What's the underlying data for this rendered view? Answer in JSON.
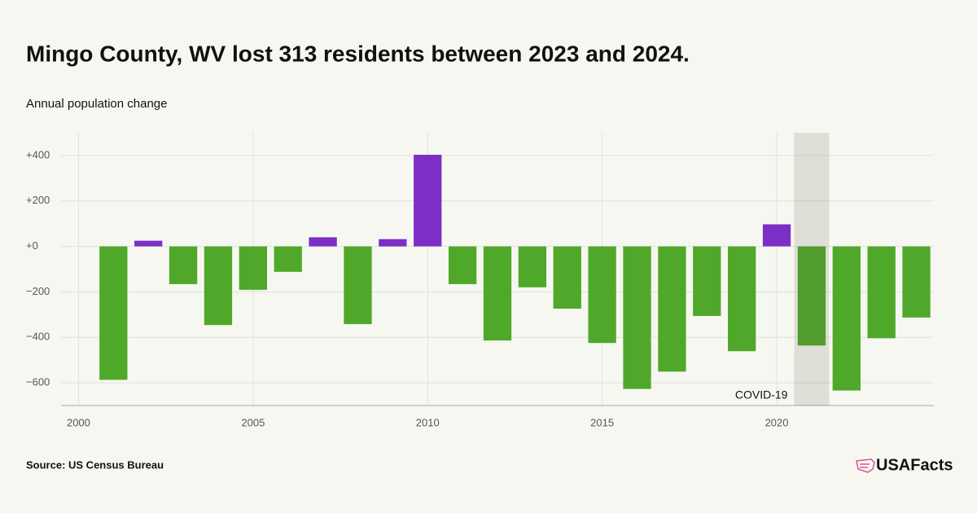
{
  "chart_data": {
    "type": "bar",
    "title": "Mingo County, WV lost 313 residents between 2023 and 2024.",
    "subtitle": "Annual population change",
    "source": "Source: US Census Bureau",
    "brand": "USAFacts",
    "x": [
      2001,
      2002,
      2003,
      2004,
      2005,
      2006,
      2007,
      2008,
      2009,
      2010,
      2011,
      2012,
      2013,
      2014,
      2015,
      2016,
      2017,
      2018,
      2019,
      2020,
      2021,
      2022,
      2023,
      2024
    ],
    "values": [
      -587,
      25,
      -166,
      -346,
      -191,
      -112,
      40,
      -342,
      32,
      403,
      -166,
      -414,
      -180,
      -274,
      -425,
      -627,
      -551,
      -306,
      -461,
      97,
      -436,
      -634,
      -404,
      -313
    ],
    "positive_color": "#7b2fc4",
    "negative_color": "#4fa82a",
    "xlim": [
      1999.5,
      2024.5
    ],
    "xticks": [
      2000,
      2005,
      2010,
      2015,
      2020
    ],
    "ylim": [
      -700,
      500
    ],
    "yticks": [
      {
        "value": 400,
        "label": "+400"
      },
      {
        "value": 200,
        "label": "+200"
      },
      {
        "value": 0,
        "label": "+0"
      },
      {
        "value": -200,
        "label": "−200"
      },
      {
        "value": -400,
        "label": "−400"
      },
      {
        "value": -600,
        "label": "−600"
      }
    ],
    "grid": true,
    "shaded_region": {
      "x": [
        2020.5,
        2021.5
      ],
      "label": "COVID-19"
    }
  }
}
